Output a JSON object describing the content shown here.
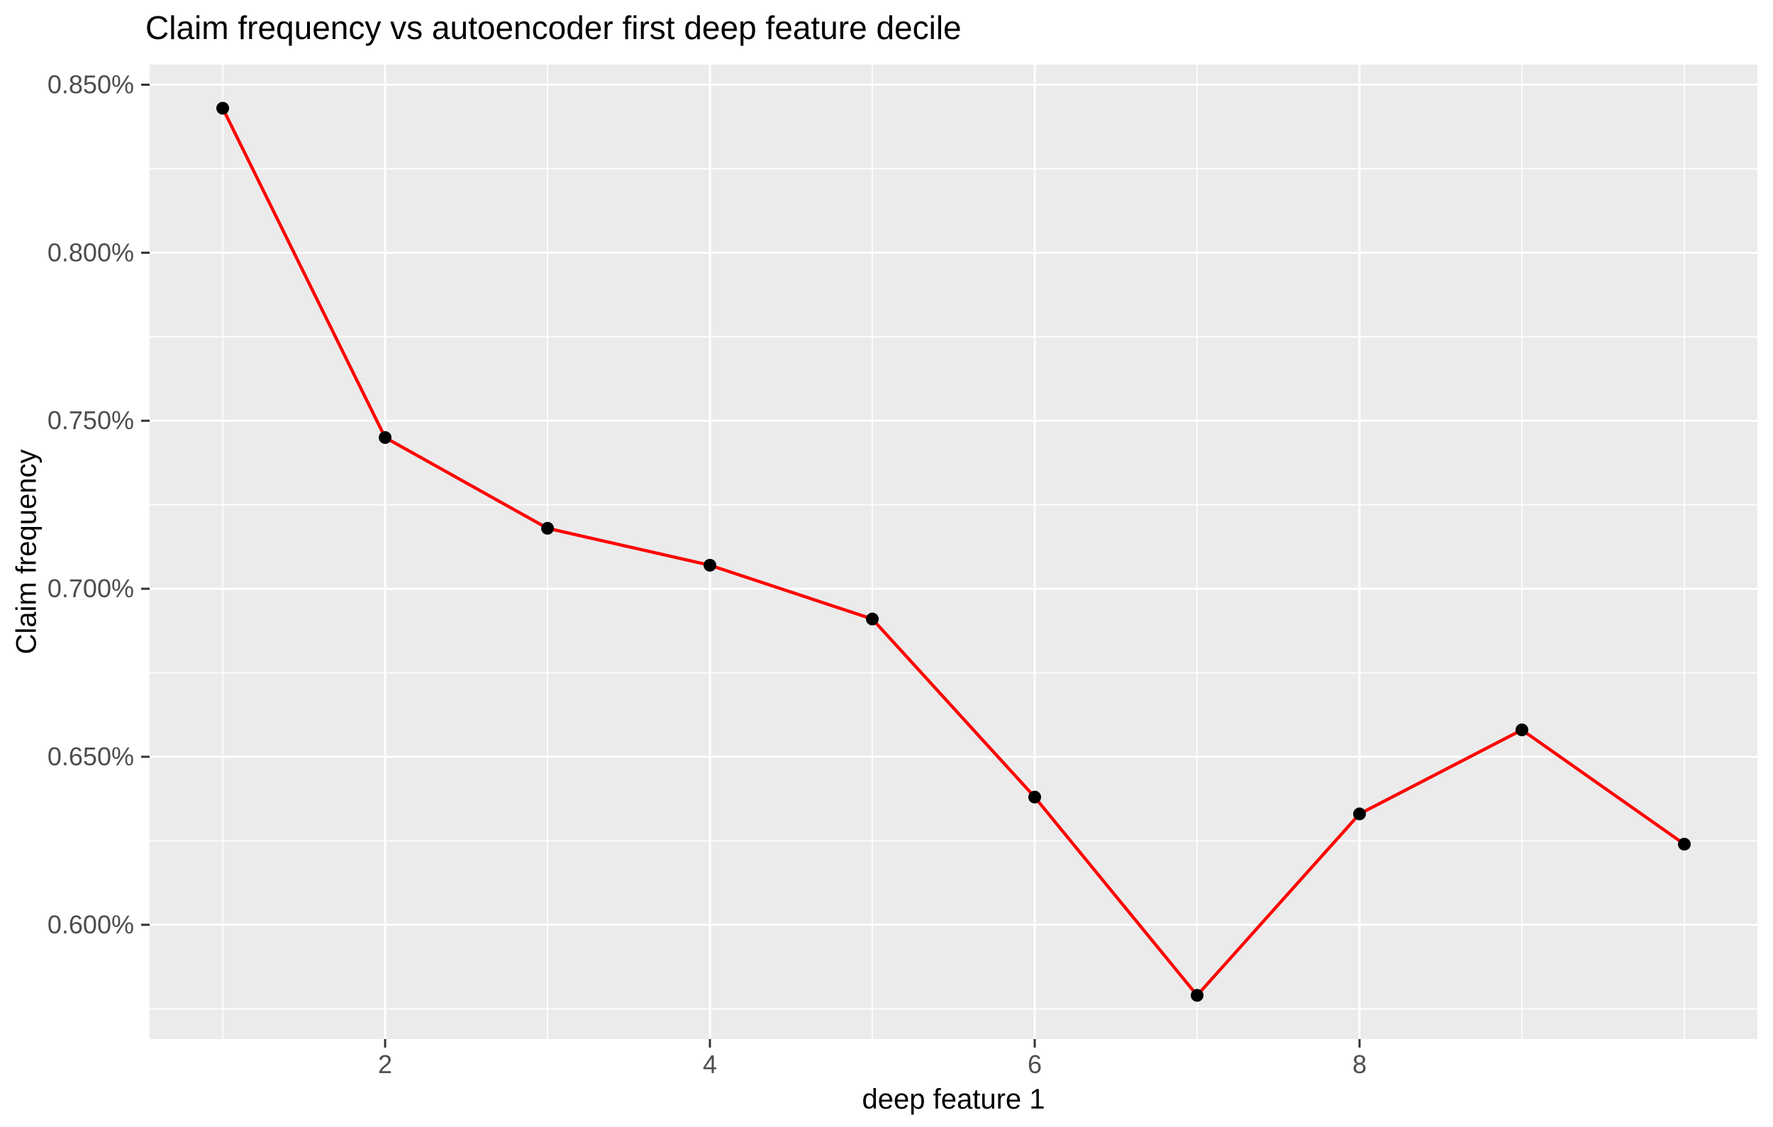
{
  "chart_data": {
    "type": "line",
    "title": "Claim frequency vs autoencoder first deep feature decile",
    "xlabel": "deep feature 1",
    "ylabel": "Claim frequency",
    "x": [
      1,
      2,
      3,
      4,
      5,
      6,
      7,
      8,
      9,
      10
    ],
    "values": [
      0.843,
      0.745,
      0.718,
      0.707,
      0.691,
      0.638,
      0.579,
      0.633,
      0.658,
      0.624
    ],
    "y_unit": "%",
    "xlim": [
      0.55,
      10.45
    ],
    "ylim": [
      0.566,
      0.856
    ],
    "grid": true,
    "legend_position": "none",
    "x_major_ticks": [
      {
        "v": 2,
        "label": "2"
      },
      {
        "v": 4,
        "label": "4"
      },
      {
        "v": 6,
        "label": "6"
      },
      {
        "v": 8,
        "label": "8"
      }
    ],
    "x_minor_gridlines": [
      1,
      3,
      5,
      7,
      9,
      10
    ],
    "y_major_ticks": [
      {
        "v": 0.85,
        "label": "0.850%"
      },
      {
        "v": 0.8,
        "label": "0.800%"
      },
      {
        "v": 0.75,
        "label": "0.750%"
      },
      {
        "v": 0.7,
        "label": "0.700%"
      },
      {
        "v": 0.65,
        "label": "0.650%"
      },
      {
        "v": 0.6,
        "label": "0.600%"
      }
    ],
    "y_minor_gridlines": [
      0.575,
      0.625,
      0.675,
      0.725,
      0.775,
      0.825
    ],
    "colors": {
      "line": "#FF0000",
      "point": "#000000",
      "panel_background": "#EBEBEB",
      "gridline": "#FFFFFF",
      "tick_mark": "#333333",
      "tick_label": "#4D4D4D",
      "title_text": "#000000"
    }
  }
}
